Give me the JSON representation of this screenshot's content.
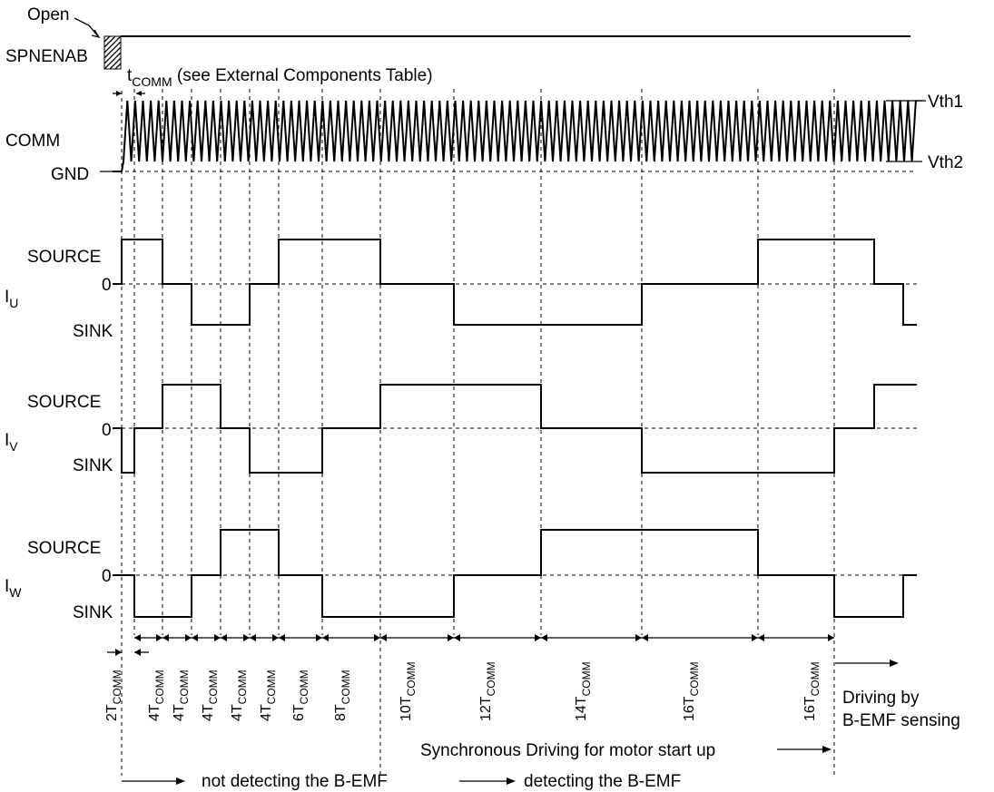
{
  "labels": {
    "open": "Open",
    "spnenab": "SPNENAB",
    "tcomm_t": "t",
    "tcomm_sub": "COMM",
    "tcomm_note": " (see External Components Table)",
    "comm": "COMM",
    "gnd": "GND",
    "vth1": "Vth1",
    "vth2": "Vth2",
    "source": "SOURCE",
    "zero": "0",
    "sink": "SINK",
    "phase_prefix": "I",
    "phase_u": "U",
    "phase_v": "V",
    "phase_w": "W"
  },
  "durations": [
    {
      "n": "2T",
      "sub": "COMM"
    },
    {
      "n": "4T",
      "sub": "COMM"
    },
    {
      "n": "4T",
      "sub": "COMM"
    },
    {
      "n": "4T",
      "sub": "COMM"
    },
    {
      "n": "4T",
      "sub": "COMM"
    },
    {
      "n": "4T",
      "sub": "COMM"
    },
    {
      "n": "6T",
      "sub": "COMM"
    },
    {
      "n": "8T",
      "sub": "COMM"
    },
    {
      "n": "10T",
      "sub": "COMM"
    },
    {
      "n": "12T",
      "sub": "COMM"
    },
    {
      "n": "14T",
      "sub": "COMM"
    },
    {
      "n": "16T",
      "sub": "COMM"
    },
    {
      "n": "16T",
      "sub": "COMM"
    }
  ],
  "notes": {
    "driving1": "Driving by",
    "driving2": "B-EMF sensing",
    "sync": "Synchronous Driving for motor start up",
    "not_detecting": "not detecting the B-EMF",
    "detecting": "detecting the B-EMF"
  },
  "waveforms": {
    "levels": [
      "source",
      "zero",
      "sink"
    ],
    "I_U": [
      "zero",
      "source",
      "zero",
      "sink",
      "zero",
      "source",
      "zero",
      "sink",
      "zero",
      "source",
      "zero",
      "sink"
    ],
    "I_V": [
      "zero",
      "sink",
      "zero",
      "source",
      "zero",
      "sink",
      "zero",
      "source",
      "zero",
      "sink",
      "zero",
      "source"
    ],
    "I_W": [
      "zero",
      "sink",
      "zero",
      "source",
      "zero",
      "sink",
      "zero",
      "source",
      "zero",
      "sink",
      "zero"
    ]
  }
}
